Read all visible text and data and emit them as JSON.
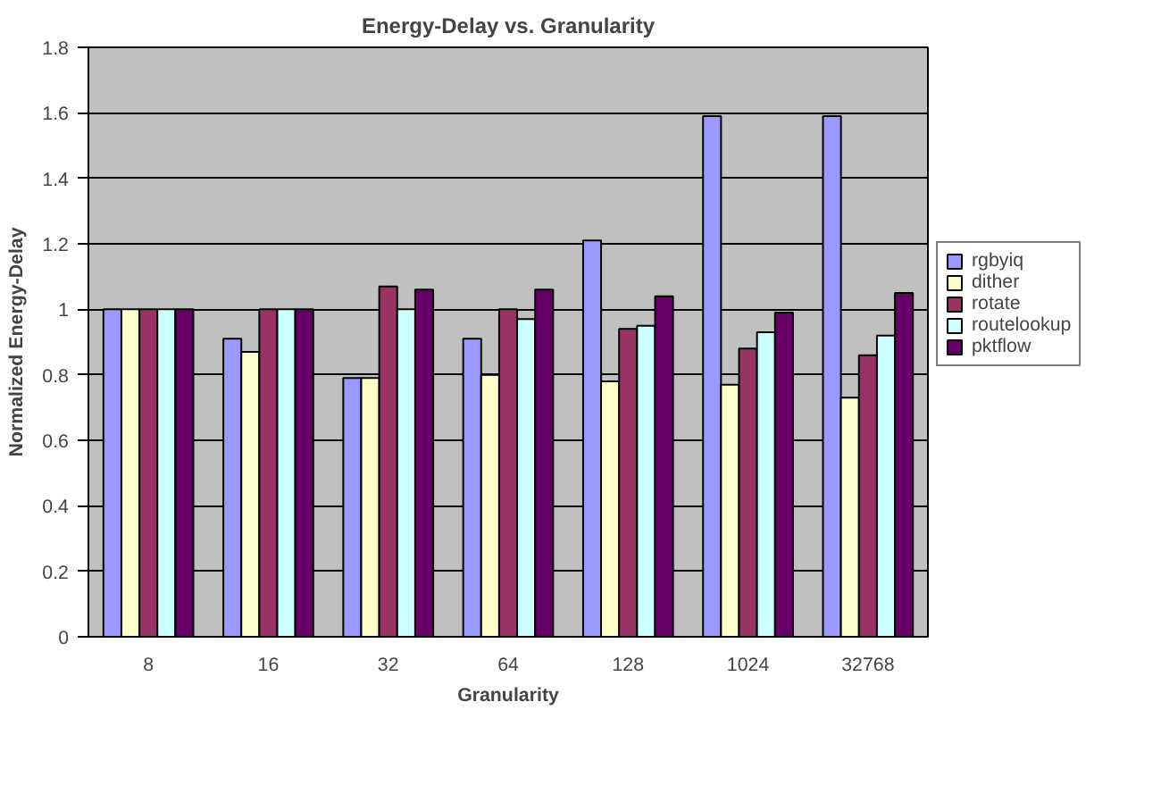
{
  "chart_data": {
    "type": "bar",
    "title": "Energy-Delay vs. Granularity",
    "xlabel": "Granularity",
    "ylabel": "Normalized Energy-Delay",
    "categories": [
      "8",
      "16",
      "32",
      "64",
      "128",
      "1024",
      "32768"
    ],
    "series": [
      {
        "name": "rgbyiq",
        "color": "#9999ff",
        "values": [
          1.0,
          0.91,
          0.79,
          0.91,
          1.21,
          1.59,
          1.59
        ]
      },
      {
        "name": "dither",
        "color": "#ffffcc",
        "values": [
          1.0,
          0.87,
          0.79,
          0.8,
          0.78,
          0.77,
          0.73
        ]
      },
      {
        "name": "rotate",
        "color": "#993366",
        "values": [
          1.0,
          1.0,
          1.07,
          1.0,
          0.94,
          0.88,
          0.86
        ]
      },
      {
        "name": "routelookup",
        "color": "#ccffff",
        "values": [
          1.0,
          1.0,
          1.0,
          0.97,
          0.95,
          0.93,
          0.92
        ]
      },
      {
        "name": "pktflow",
        "color": "#660066",
        "values": [
          1.0,
          1.0,
          1.06,
          1.06,
          1.04,
          0.99,
          1.05
        ]
      }
    ],
    "ylim": [
      0,
      1.8
    ],
    "yticks": [
      0,
      0.2,
      0.4,
      0.6,
      0.8,
      1,
      1.2,
      1.4,
      1.6,
      1.8
    ],
    "grid": "y",
    "legend": "right"
  }
}
